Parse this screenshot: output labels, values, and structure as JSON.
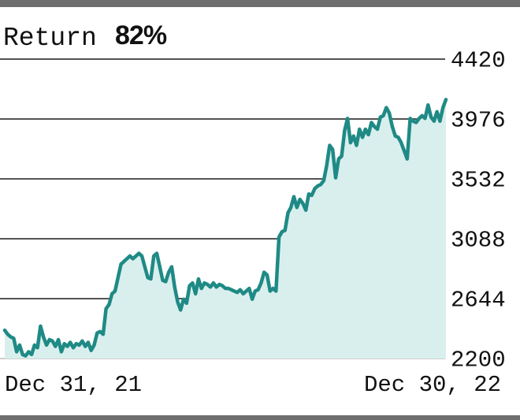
{
  "header": {
    "label": "Return",
    "value": "82%"
  },
  "chart_data": {
    "type": "area",
    "title": "",
    "xlabel": "",
    "ylabel": "",
    "x_tick_labels": [
      "Dec 31, 21",
      "Dec 30, 22"
    ],
    "yticks": [
      2200,
      2644,
      3088,
      3532,
      3976,
      4420
    ],
    "ylim": [
      2200,
      4420
    ],
    "grid": true,
    "line_color": "#1f8a85",
    "fill_color": "#d9efee",
    "series": [
      {
        "values": [
          2410,
          2380,
          2360,
          2350,
          2250,
          2300,
          2230,
          2220,
          2250,
          2230,
          2300,
          2280,
          2440,
          2360,
          2300,
          2340,
          2330,
          2290,
          2340,
          2250,
          2310,
          2290,
          2320,
          2280,
          2310,
          2300,
          2330,
          2290,
          2320,
          2260,
          2300,
          2390,
          2400,
          2380,
          2570,
          2600,
          2680,
          2700,
          2800,
          2900,
          2920,
          2940,
          2960,
          2940,
          2960,
          2980,
          2960,
          2880,
          2800,
          2790,
          2960,
          2980,
          2880,
          2780,
          2770,
          2840,
          2880,
          2730,
          2620,
          2560,
          2640,
          2610,
          2740,
          2760,
          2680,
          2790,
          2720,
          2760,
          2750,
          2730,
          2760,
          2730,
          2750,
          2740,
          2720,
          2720,
          2710,
          2700,
          2690,
          2710,
          2680,
          2700,
          2720,
          2640,
          2700,
          2710,
          2760,
          2840,
          2820,
          2700,
          2720,
          2700,
          3100,
          3140,
          3150,
          3280,
          3320,
          3400,
          3320,
          3380,
          3350,
          3300,
          3420,
          3410,
          3460,
          3480,
          3490,
          3520,
          3630,
          3780,
          3750,
          3540,
          3680,
          3700,
          3890,
          3980,
          3800,
          3850,
          3780,
          3900,
          3840,
          3900,
          3860,
          3950,
          3920,
          3900,
          3990,
          4000,
          4060,
          4020,
          3920,
          3850,
          3840,
          3800,
          3740,
          3680,
          3980,
          3960,
          3950,
          3980,
          4000,
          3980,
          4080,
          3990,
          3960,
          4030,
          3960,
          4060,
          4120
        ]
      }
    ]
  }
}
